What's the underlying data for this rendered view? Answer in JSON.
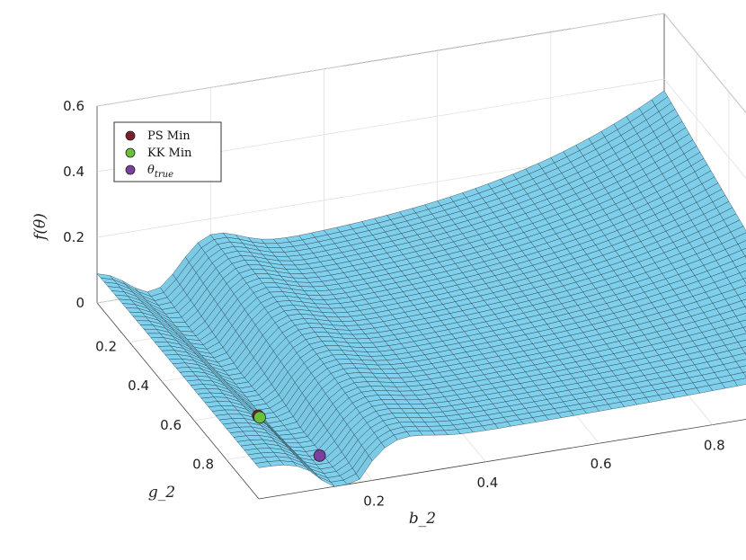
{
  "chart_data": {
    "type": "surface",
    "title": "",
    "xlabel": "b_2",
    "ylabel": "g_2",
    "zlabel": "f(θ)",
    "xlim": [
      0,
      1
    ],
    "ylim": [
      0,
      1
    ],
    "zlim": [
      0,
      0.6
    ],
    "x_ticks": [
      "0.2",
      "0.4",
      "0.6",
      "0.8"
    ],
    "y_ticks": [
      "0.2",
      "0.4",
      "0.6",
      "0.8"
    ],
    "z_ticks": [
      "0",
      "0.2",
      "0.4",
      "0.6"
    ],
    "grid": true,
    "surface_color": "#7fd0ec",
    "surface_description": "loss surface with a narrow valley near b_2 ≈ 0.1 rising toward b_2 = 1",
    "points": [
      {
        "name": "PS Min",
        "x": 0.09,
        "y": 0.68,
        "z": 0.0,
        "color": "#7a1f2b"
      },
      {
        "name": "KK Min",
        "x": 0.09,
        "y": 0.69,
        "z": 0.0,
        "color": "#6cbf3a"
      },
      {
        "name": "θ_true",
        "x": 0.15,
        "y": 0.85,
        "z": 0.0,
        "color": "#7b3fa0"
      }
    ],
    "legend": {
      "position": "top-left",
      "entries": [
        {
          "label": "PS Min",
          "color": "#7a1f2b"
        },
        {
          "label": "KK Min",
          "color": "#6cbf3a"
        },
        {
          "label": "θ",
          "sub": "true",
          "color": "#7b3fa0"
        }
      ]
    }
  }
}
